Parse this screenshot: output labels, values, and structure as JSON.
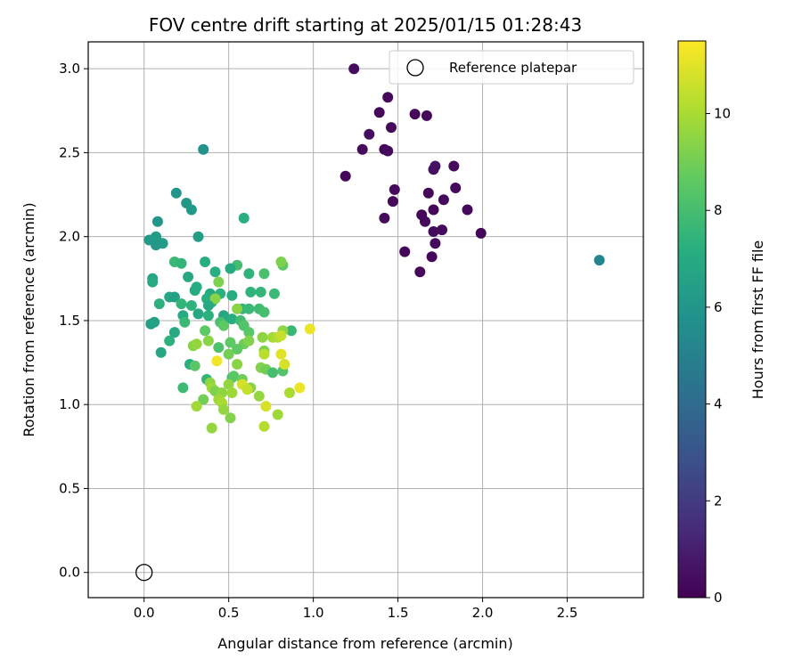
{
  "chart_data": {
    "type": "scatter",
    "title": "FOV centre drift starting at 2025/01/15 01:28:43",
    "xlabel": "Angular distance from reference (arcmin)",
    "ylabel": "Rotation from reference (arcmin)",
    "xlim": [
      -0.33,
      2.95
    ],
    "ylim": [
      -0.15,
      3.16
    ],
    "xticks": [
      0.0,
      0.5,
      1.0,
      1.5,
      2.0,
      2.5
    ],
    "xtick_labels": [
      "0.0",
      "0.5",
      "1.0",
      "1.5",
      "2.0",
      "2.5"
    ],
    "yticks": [
      0.0,
      0.5,
      1.0,
      1.5,
      2.0,
      2.5,
      3.0
    ],
    "ytick_labels": [
      "0.0",
      "0.5",
      "1.0",
      "1.5",
      "2.0",
      "2.5",
      "3.0"
    ],
    "grid": true,
    "legend": {
      "placement": "upper right",
      "entries": [
        "Reference platepar"
      ]
    },
    "reference_point": {
      "x": 0.0,
      "y": 0.0,
      "label": "Reference platepar"
    },
    "colorbar": {
      "label": "Hours from first FF file",
      "range": [
        0,
        11.5
      ],
      "colormap": "viridis",
      "ticks": [
        0,
        2,
        4,
        6,
        8,
        10
      ],
      "tick_labels": [
        "0",
        "2",
        "4",
        "6",
        "8",
        "10"
      ]
    },
    "points": [
      [
        1.24,
        3.0,
        0.4
      ],
      [
        1.44,
        2.83,
        0.3
      ],
      [
        1.39,
        2.74,
        0.2
      ],
      [
        1.6,
        2.73,
        0.2
      ],
      [
        1.67,
        2.72,
        0.2
      ],
      [
        1.46,
        2.65,
        0.3
      ],
      [
        1.33,
        2.61,
        0.4
      ],
      [
        1.29,
        2.52,
        0.3
      ],
      [
        1.42,
        2.52,
        0.2
      ],
      [
        1.44,
        2.51,
        0.3
      ],
      [
        1.72,
        2.42,
        0.6
      ],
      [
        1.71,
        2.4,
        0.5
      ],
      [
        1.83,
        2.42,
        0.3
      ],
      [
        1.19,
        2.36,
        0.2
      ],
      [
        1.48,
        2.28,
        0.3
      ],
      [
        1.84,
        2.29,
        0.3
      ],
      [
        1.68,
        2.26,
        0.2
      ],
      [
        1.77,
        2.22,
        0.3
      ],
      [
        1.47,
        2.21,
        0.3
      ],
      [
        1.71,
        2.16,
        0.2
      ],
      [
        1.91,
        2.16,
        0.3
      ],
      [
        1.64,
        2.13,
        0.2
      ],
      [
        1.42,
        2.11,
        0.3
      ],
      [
        1.66,
        2.09,
        0.3
      ],
      [
        1.71,
        2.03,
        0.3
      ],
      [
        1.76,
        2.04,
        0.3
      ],
      [
        1.99,
        2.02,
        0.2
      ],
      [
        1.72,
        1.96,
        0.3
      ],
      [
        1.54,
        1.91,
        0.2
      ],
      [
        1.7,
        1.88,
        0.2
      ],
      [
        1.63,
        1.79,
        0.2
      ],
      [
        2.69,
        1.86,
        5.2
      ],
      [
        0.35,
        2.52,
        5.8
      ],
      [
        0.19,
        2.26,
        6.0
      ],
      [
        0.25,
        2.2,
        6.1
      ],
      [
        0.28,
        2.16,
        6.2
      ],
      [
        0.59,
        2.11,
        7.2
      ],
      [
        0.08,
        2.09,
        6.0
      ],
      [
        0.03,
        1.98,
        6.2
      ],
      [
        0.07,
        2.0,
        6.3
      ],
      [
        0.08,
        1.97,
        6.4
      ],
      [
        0.11,
        1.96,
        6.3
      ],
      [
        0.07,
        1.95,
        6.1
      ],
      [
        0.32,
        2.0,
        6.4
      ],
      [
        0.18,
        1.85,
        7.7
      ],
      [
        0.22,
        1.84,
        7.5
      ],
      [
        0.36,
        1.85,
        7.1
      ],
      [
        0.55,
        1.83,
        7.9
      ],
      [
        0.82,
        1.83,
        8.6
      ],
      [
        0.81,
        1.85,
        9.2
      ],
      [
        0.51,
        1.81,
        7.0
      ],
      [
        0.42,
        1.79,
        7.2
      ],
      [
        0.62,
        1.78,
        7.4
      ],
      [
        0.71,
        1.78,
        8.1
      ],
      [
        0.26,
        1.76,
        6.9
      ],
      [
        0.05,
        1.75,
        6.7
      ],
      [
        0.05,
        1.73,
        7.0
      ],
      [
        0.44,
        1.73,
        9.2
      ],
      [
        0.31,
        1.7,
        7.1
      ],
      [
        0.3,
        1.68,
        7.0
      ],
      [
        0.15,
        1.64,
        6.8
      ],
      [
        0.18,
        1.64,
        6.5
      ],
      [
        0.39,
        1.66,
        7.0
      ],
      [
        0.45,
        1.66,
        7.3
      ],
      [
        0.52,
        1.65,
        7.1
      ],
      [
        0.63,
        1.67,
        7.4
      ],
      [
        0.69,
        1.67,
        7.5
      ],
      [
        0.77,
        1.66,
        7.7
      ],
      [
        0.37,
        1.63,
        7.2
      ],
      [
        0.4,
        1.61,
        7.3
      ],
      [
        0.42,
        1.63,
        9.4
      ],
      [
        0.09,
        1.6,
        7.3
      ],
      [
        0.22,
        1.6,
        7.5
      ],
      [
        0.28,
        1.59,
        7.4
      ],
      [
        0.38,
        1.59,
        6.9
      ],
      [
        0.58,
        1.57,
        7.5
      ],
      [
        0.62,
        1.57,
        7.7
      ],
      [
        0.68,
        1.57,
        7.8
      ],
      [
        0.71,
        1.55,
        8.0
      ],
      [
        0.55,
        1.57,
        9.4
      ],
      [
        0.23,
        1.53,
        7.0
      ],
      [
        0.32,
        1.54,
        6.9
      ],
      [
        0.38,
        1.53,
        7.3
      ],
      [
        0.47,
        1.53,
        6.8
      ],
      [
        0.48,
        1.51,
        7.0
      ],
      [
        0.52,
        1.51,
        7.1
      ],
      [
        0.57,
        1.5,
        7.9
      ],
      [
        0.04,
        1.48,
        6.4
      ],
      [
        0.06,
        1.49,
        6.6
      ],
      [
        0.24,
        1.49,
        7.7
      ],
      [
        0.45,
        1.49,
        8.1
      ],
      [
        0.59,
        1.47,
        8.3
      ],
      [
        0.47,
        1.47,
        8.6
      ],
      [
        0.87,
        1.44,
        7.6
      ],
      [
        0.18,
        1.43,
        6.9
      ],
      [
        0.36,
        1.44,
        8.6
      ],
      [
        0.62,
        1.43,
        8.5
      ],
      [
        0.82,
        1.44,
        9.5
      ],
      [
        0.98,
        1.45,
        11.2
      ],
      [
        0.15,
        1.38,
        7.3
      ],
      [
        0.38,
        1.38,
        9.4
      ],
      [
        0.51,
        1.37,
        8.6
      ],
      [
        0.59,
        1.36,
        8.9
      ],
      [
        0.62,
        1.38,
        9.3
      ],
      [
        0.7,
        1.4,
        9.5
      ],
      [
        0.76,
        1.4,
        9.9
      ],
      [
        0.79,
        1.4,
        10.1
      ],
      [
        0.81,
        1.41,
        10.5
      ],
      [
        0.29,
        1.35,
        9.4
      ],
      [
        0.31,
        1.36,
        9.6
      ],
      [
        0.44,
        1.34,
        8.2
      ],
      [
        0.55,
        1.33,
        8.6
      ],
      [
        0.71,
        1.32,
        9.2
      ],
      [
        0.71,
        1.3,
        10.3
      ],
      [
        0.81,
        1.3,
        11.0
      ],
      [
        0.1,
        1.31,
        6.8
      ],
      [
        0.5,
        1.3,
        9.0
      ],
      [
        0.43,
        1.26,
        11.3
      ],
      [
        0.27,
        1.24,
        7.2
      ],
      [
        0.3,
        1.23,
        8.5
      ],
      [
        0.55,
        1.24,
        9.4
      ],
      [
        0.69,
        1.22,
        9.3
      ],
      [
        0.72,
        1.21,
        9.0
      ],
      [
        0.76,
        1.19,
        8.0
      ],
      [
        0.82,
        1.2,
        8.3
      ],
      [
        0.83,
        1.24,
        10.8
      ],
      [
        0.37,
        1.15,
        7.5
      ],
      [
        0.52,
        1.16,
        8.0
      ],
      [
        0.53,
        1.17,
        8.5
      ],
      [
        0.58,
        1.15,
        8.9
      ],
      [
        0.39,
        1.13,
        9.5
      ],
      [
        0.4,
        1.1,
        9.8
      ],
      [
        0.23,
        1.1,
        7.8
      ],
      [
        0.5,
        1.12,
        9.6
      ],
      [
        0.58,
        1.12,
        10.8
      ],
      [
        0.63,
        1.1,
        9.4
      ],
      [
        0.61,
        1.09,
        10.5
      ],
      [
        0.42,
        1.08,
        9.2
      ],
      [
        0.46,
        1.07,
        9.5
      ],
      [
        0.52,
        1.07,
        9.8
      ],
      [
        0.35,
        1.03,
        9.0
      ],
      [
        0.44,
        1.03,
        9.8
      ],
      [
        0.46,
        1.01,
        10.0
      ],
      [
        0.47,
        0.97,
        9.6
      ],
      [
        0.31,
        0.99,
        9.8
      ],
      [
        0.68,
        1.05,
        9.6
      ],
      [
        0.72,
        0.99,
        10.8
      ],
      [
        0.86,
        1.07,
        10.0
      ],
      [
        0.92,
        1.1,
        11.2
      ],
      [
        0.51,
        0.92,
        9.3
      ],
      [
        0.79,
        0.94,
        9.8
      ],
      [
        0.4,
        0.86,
        9.6
      ],
      [
        0.71,
        0.87,
        10.2
      ]
    ]
  }
}
